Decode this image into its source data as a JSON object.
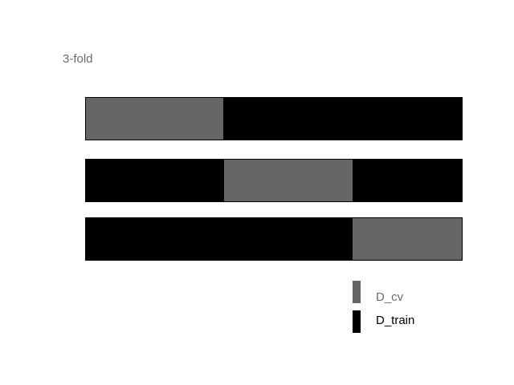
{
  "title": "3-fold",
  "colors": {
    "cv": "#666666",
    "train": "#000000",
    "title_text": "#6b6b6b"
  },
  "folds": [
    {
      "segments": [
        "D_cv",
        "D_train"
      ]
    },
    {
      "segments": [
        "D_train",
        "D_cv",
        "D_train"
      ]
    },
    {
      "segments": [
        "D_train",
        "D_cv"
      ]
    }
  ],
  "legend": {
    "cv_label": "D_cv",
    "train_label": "D_train"
  }
}
